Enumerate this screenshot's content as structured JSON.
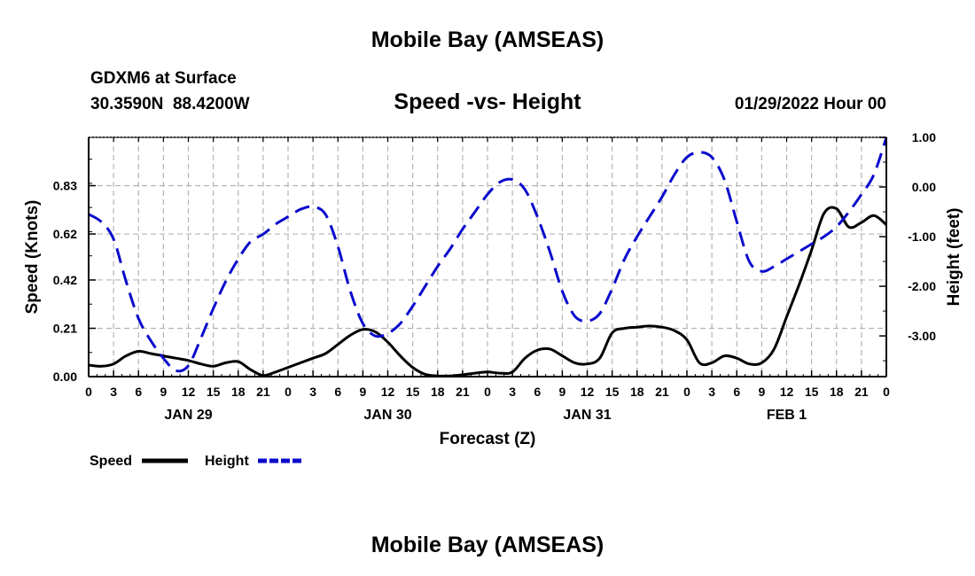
{
  "page": {
    "main_title": "Mobile Bay (AMSEAS)",
    "station": "GDXM6 at Surface",
    "coords": "30.3590N  88.4200W",
    "chart_title": "Speed -vs- Height",
    "run": "01/29/2022 Hour 00",
    "footer_title": "Mobile Bay (AMSEAS)"
  },
  "colors": {
    "speed": "#000000",
    "height": "#0a0acc",
    "grid": "#b4b4b4"
  },
  "chart_data": {
    "type": "line",
    "title": "Speed -vs- Height",
    "xlabel": "Forecast (Z)",
    "ylabel": "Speed (Knots)",
    "y2label": "Height (feet)",
    "x_range_hours": [
      0,
      96
    ],
    "ylim": [
      0,
      1.04
    ],
    "y2lim": [
      -3.82,
      1.0
    ],
    "grid": true,
    "legend_position": "bottom-left",
    "y_ticks": [
      "0.00",
      "0.21",
      "0.42",
      "0.62",
      "0.83"
    ],
    "y_tick_values": [
      0,
      0.21,
      0.42,
      0.62,
      0.83
    ],
    "y2_ticks": [
      "1.00",
      "0.00",
      "-1.00",
      "-2.00",
      "-3.00"
    ],
    "y2_tick_values": [
      1,
      0,
      -1,
      -2,
      -3
    ],
    "x_tick_hours": [
      0,
      3,
      6,
      9,
      12,
      15,
      18,
      21,
      24,
      27,
      30,
      33,
      36,
      39,
      42,
      45,
      48,
      51,
      54,
      57,
      60,
      63,
      66,
      69,
      72,
      75,
      78,
      81,
      84,
      87,
      90,
      93,
      96
    ],
    "x_tick_labels": [
      "0",
      "3",
      "6",
      "9",
      "12",
      "15",
      "18",
      "21",
      "0",
      "3",
      "6",
      "9",
      "12",
      "15",
      "18",
      "21",
      "0",
      "3",
      "6",
      "9",
      "12",
      "15",
      "18",
      "21",
      "0",
      "3",
      "6",
      "9",
      "12",
      "15",
      "18",
      "21",
      "0"
    ],
    "date_labels": [
      {
        "label": "JAN 29",
        "hour": 12
      },
      {
        "label": "JAN 30",
        "hour": 36
      },
      {
        "label": "JAN 31",
        "hour": 60
      },
      {
        "label": "FEB 1",
        "hour": 84
      }
    ],
    "series": [
      {
        "name": "Speed",
        "axis": "left",
        "style": "solid",
        "x": [
          0,
          1.5,
          3,
          4.5,
          6,
          7.5,
          9,
          10.5,
          12,
          13.5,
          15,
          16.5,
          18,
          19.5,
          21,
          22.5,
          24,
          25.5,
          27,
          28.5,
          30,
          31.5,
          33,
          34.5,
          36,
          37.5,
          39,
          40.5,
          42,
          43.5,
          45,
          46.5,
          48,
          49.5,
          51,
          52.5,
          54,
          55.5,
          57,
          58.5,
          60,
          61.5,
          63,
          64.5,
          66,
          67.5,
          69,
          70.5,
          72,
          73.5,
          75,
          76.5,
          78,
          79.5,
          81,
          82.5,
          84,
          85.5,
          87,
          88.5,
          90,
          91.5,
          93,
          94.5,
          96
        ],
        "values": [
          0.05,
          0.045,
          0.055,
          0.09,
          0.11,
          0.1,
          0.09,
          0.08,
          0.07,
          0.055,
          0.045,
          0.06,
          0.065,
          0.03,
          0.005,
          0.02,
          0.04,
          0.06,
          0.08,
          0.1,
          0.14,
          0.18,
          0.205,
          0.195,
          0.15,
          0.09,
          0.04,
          0.01,
          0.003,
          0.003,
          0.008,
          0.015,
          0.02,
          0.015,
          0.02,
          0.08,
          0.115,
          0.12,
          0.09,
          0.06,
          0.055,
          0.08,
          0.19,
          0.21,
          0.215,
          0.22,
          0.215,
          0.2,
          0.16,
          0.06,
          0.06,
          0.09,
          0.08,
          0.055,
          0.06,
          0.12,
          0.26,
          0.4,
          0.55,
          0.71,
          0.73,
          0.65,
          0.67,
          0.7,
          0.66
        ]
      },
      {
        "name": "Height",
        "axis": "right",
        "style": "dashed",
        "x": [
          0,
          1.5,
          3,
          4.5,
          6,
          7.5,
          9,
          10.5,
          12,
          13.5,
          15,
          16.5,
          18,
          19.5,
          21,
          22.5,
          24,
          25.5,
          27,
          28.5,
          30,
          31.5,
          33,
          34.5,
          36,
          37.5,
          39,
          40.5,
          42,
          43.5,
          45,
          46.5,
          48,
          49.5,
          51,
          52.5,
          54,
          55.5,
          57,
          58.5,
          60,
          61.5,
          63,
          64.5,
          66,
          67.5,
          69,
          70.5,
          72,
          73.5,
          75,
          76.5,
          78,
          79.5,
          81,
          82.5,
          84,
          85.5,
          87,
          88.5,
          90,
          91.5,
          93,
          94.5,
          96
        ],
        "values": [
          -0.55,
          -0.7,
          -1.05,
          -1.9,
          -2.65,
          -3.1,
          -3.45,
          -3.7,
          -3.6,
          -3.05,
          -2.45,
          -1.9,
          -1.45,
          -1.1,
          -0.95,
          -0.75,
          -0.6,
          -0.45,
          -0.4,
          -0.55,
          -1.2,
          -2.1,
          -2.75,
          -3.0,
          -2.95,
          -2.75,
          -2.4,
          -2.0,
          -1.6,
          -1.25,
          -0.85,
          -0.5,
          -0.15,
          0.1,
          0.15,
          -0.05,
          -0.6,
          -1.3,
          -2.1,
          -2.6,
          -2.7,
          -2.55,
          -2.05,
          -1.45,
          -1.0,
          -0.6,
          -0.2,
          0.25,
          0.6,
          0.7,
          0.6,
          0.15,
          -0.7,
          -1.5,
          -1.7,
          -1.6,
          -1.45,
          -1.3,
          -1.15,
          -1.0,
          -0.8,
          -0.5,
          -0.15,
          0.25,
          1.0
        ]
      }
    ],
    "legend": [
      {
        "label": "Speed",
        "style": "solid"
      },
      {
        "label": "Height",
        "style": "dashed"
      }
    ]
  }
}
